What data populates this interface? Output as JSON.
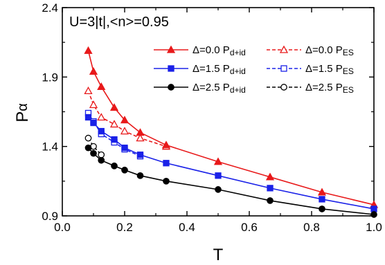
{
  "chart_data": {
    "type": "line",
    "annotation": "U=3|t|,<n>=0.95",
    "xlabel": "T",
    "ylabel_main": "P",
    "ylabel_sub": "α",
    "xlim": [
      0.0,
      1.0
    ],
    "ylim": [
      0.9,
      2.4
    ],
    "xticks": [
      "0.0",
      "0.2",
      "0.4",
      "0.6",
      "0.8",
      "1.0"
    ],
    "yticks": [
      "0.9",
      "1.4",
      "1.9",
      "2.4"
    ],
    "grid": false,
    "legend_position": "top-right",
    "series": [
      {
        "name": "Δ=0.0 Pd+id",
        "legend_main": "Δ=0.0 P",
        "legend_sub": "d+id",
        "color": "#e8191a",
        "line": "solid",
        "marker": "filled-triangle",
        "x": [
          0.0833,
          0.1,
          0.125,
          0.1667,
          0.2,
          0.25,
          0.3333,
          0.5,
          0.6667,
          0.8333,
          1.0
        ],
        "y": [
          2.09,
          1.94,
          1.83,
          1.68,
          1.59,
          1.5,
          1.41,
          1.29,
          1.18,
          1.07,
          0.98
        ]
      },
      {
        "name": "Δ=0.0 PES",
        "legend_main": "Δ=0.0 P",
        "legend_sub": "ES",
        "color": "#e8191a",
        "line": "dashed",
        "marker": "open-triangle",
        "x": [
          0.0833,
          0.1,
          0.125,
          0.1667,
          0.2,
          0.25,
          0.3333
        ],
        "y": [
          1.8,
          1.7,
          1.61,
          1.56,
          1.51,
          1.46,
          1.4
        ]
      },
      {
        "name": "Δ=1.5 Pd+id",
        "legend_main": "Δ=1.5 P",
        "legend_sub": "d+id",
        "color": "#1a21e8",
        "line": "solid",
        "marker": "filled-square",
        "x": [
          0.0833,
          0.1,
          0.125,
          0.1667,
          0.2,
          0.25,
          0.3333,
          0.5,
          0.6667,
          0.8333,
          1.0
        ],
        "y": [
          1.61,
          1.57,
          1.51,
          1.45,
          1.39,
          1.34,
          1.28,
          1.19,
          1.1,
          1.02,
          0.95
        ]
      },
      {
        "name": "Δ=1.5 PES",
        "legend_main": "Δ=1.5 P",
        "legend_sub": "ES",
        "color": "#1a21e8",
        "line": "dashed",
        "marker": "open-square",
        "x": [
          0.0833,
          0.1,
          0.125,
          0.1667,
          0.2,
          0.25
        ],
        "y": [
          1.64,
          1.58,
          1.49,
          1.43,
          1.38,
          1.33
        ]
      },
      {
        "name": "Δ=2.5 Pd+id",
        "legend_main": "Δ=2.5 P",
        "legend_sub": "d+id",
        "color": "#000000",
        "line": "solid",
        "marker": "filled-circle",
        "x": [
          0.0833,
          0.1,
          0.125,
          0.1667,
          0.2,
          0.25,
          0.3333,
          0.5,
          0.6667,
          0.8333,
          1.0
        ],
        "y": [
          1.39,
          1.35,
          1.3,
          1.26,
          1.23,
          1.19,
          1.15,
          1.09,
          1.01,
          0.95,
          0.91
        ]
      },
      {
        "name": "Δ=2.5 PES",
        "legend_main": "Δ=2.5 P",
        "legend_sub": "ES",
        "color": "#000000",
        "line": "dashed",
        "marker": "open-circle",
        "x": [
          0.0833,
          0.1,
          0.125
        ],
        "y": [
          1.46,
          1.4,
          1.34
        ]
      }
    ]
  }
}
